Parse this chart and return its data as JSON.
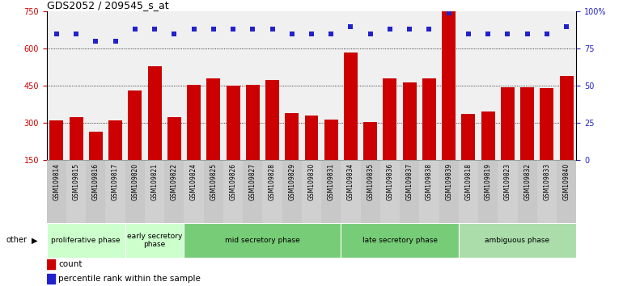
{
  "title": "GDS2052 / 209545_s_at",
  "samples": [
    "GSM109814",
    "GSM109815",
    "GSM109816",
    "GSM109817",
    "GSM109820",
    "GSM109821",
    "GSM109822",
    "GSM109824",
    "GSM109825",
    "GSM109826",
    "GSM109827",
    "GSM109828",
    "GSM109829",
    "GSM109830",
    "GSM109831",
    "GSM109834",
    "GSM109835",
    "GSM109836",
    "GSM109837",
    "GSM109838",
    "GSM109839",
    "GSM109818",
    "GSM109819",
    "GSM109823",
    "GSM109832",
    "GSM109833",
    "GSM109840"
  ],
  "counts": [
    310,
    325,
    265,
    310,
    430,
    530,
    325,
    455,
    480,
    450,
    455,
    475,
    340,
    330,
    315,
    585,
    305,
    480,
    465,
    480,
    750,
    335,
    345,
    445,
    445,
    440,
    490
  ],
  "percentiles": [
    85,
    85,
    80,
    80,
    88,
    88,
    85,
    88,
    88,
    88,
    88,
    88,
    85,
    85,
    85,
    90,
    85,
    88,
    88,
    88,
    99,
    85,
    85,
    85,
    85,
    85,
    90
  ],
  "bar_color": "#cc0000",
  "dot_color": "#2222cc",
  "ylim_left": [
    150,
    750
  ],
  "ylim_right": [
    0,
    100
  ],
  "yticks_left": [
    150,
    300,
    450,
    600,
    750
  ],
  "yticks_right": [
    0,
    25,
    50,
    75,
    100
  ],
  "grid_vals": [
    300,
    450,
    600
  ],
  "phase_data": [
    {
      "label": "proliferative phase",
      "start": 0,
      "end": 4,
      "color": "#ccffcc"
    },
    {
      "label": "early secretory\nphase",
      "start": 4,
      "end": 7,
      "color": "#ccffcc"
    },
    {
      "label": "mid secretory phase",
      "start": 7,
      "end": 15,
      "color": "#77cc77"
    },
    {
      "label": "late secretory phase",
      "start": 15,
      "end": 21,
      "color": "#77cc77"
    },
    {
      "label": "ambiguous phase",
      "start": 21,
      "end": 27,
      "color": "#aaddaa"
    }
  ],
  "other_label": "other",
  "legend_count": "count",
  "legend_percentile": "percentile rank within the sample",
  "xtick_bg": "#c8c8c8",
  "plot_bg": "#f0f0f0"
}
